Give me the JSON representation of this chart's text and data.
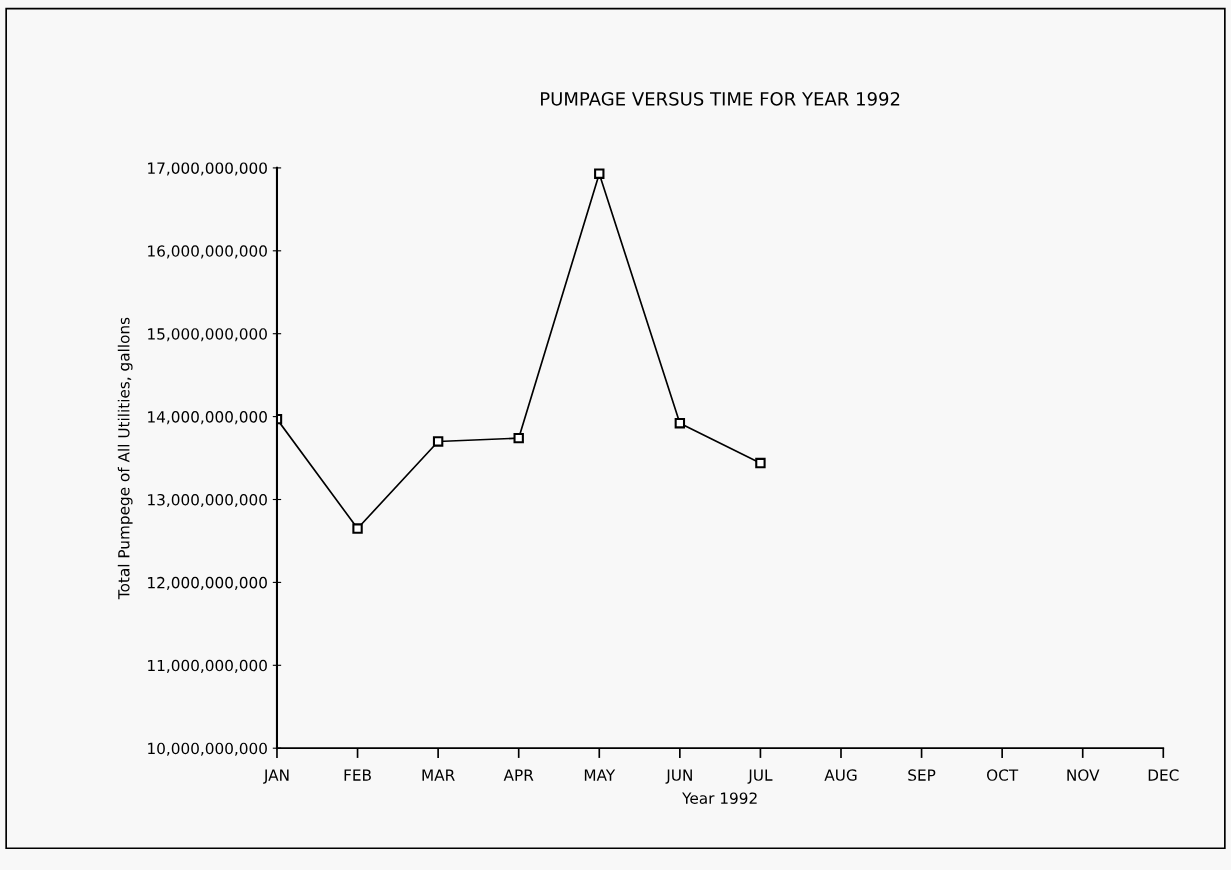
{
  "chart_data": {
    "type": "line",
    "title": "PUMPAGE VERSUS TIME FOR YEAR 1992",
    "xlabel": "Year 1992",
    "ylabel": "Total Pumpege of All Utilities, gallons",
    "categories": [
      "JAN",
      "FEB",
      "MAR",
      "APR",
      "MAY",
      "JUN",
      "JUL",
      "AUG",
      "SEP",
      "OCT",
      "NOV",
      "DEC"
    ],
    "series": [
      {
        "color": "#000000",
        "values": [
          13970000000,
          12650000000,
          13700000000,
          13740000000,
          16930000000,
          13920000000,
          13440000000,
          null,
          null,
          null,
          null,
          null
        ]
      }
    ],
    "ylim": [
      10000000000,
      17000000000
    ],
    "yticks": [
      {
        "value": 10000000000,
        "label": "10,000,000,000"
      },
      {
        "value": 11000000000,
        "label": "11,000,000,000"
      },
      {
        "value": 12000000000,
        "label": "12,000,000,000"
      },
      {
        "value": 13000000000,
        "label": "13,000,000,000"
      },
      {
        "value": 14000000000,
        "label": "14,000,000,000"
      },
      {
        "value": 15000000000,
        "label": "15,000,000,000"
      },
      {
        "value": 16000000000,
        "label": "16,000,000,000"
      },
      {
        "value": 17000000000,
        "label": "17,000,000,000"
      }
    ],
    "marker": "square",
    "line_style": "solid",
    "grid": false,
    "legend": false
  }
}
